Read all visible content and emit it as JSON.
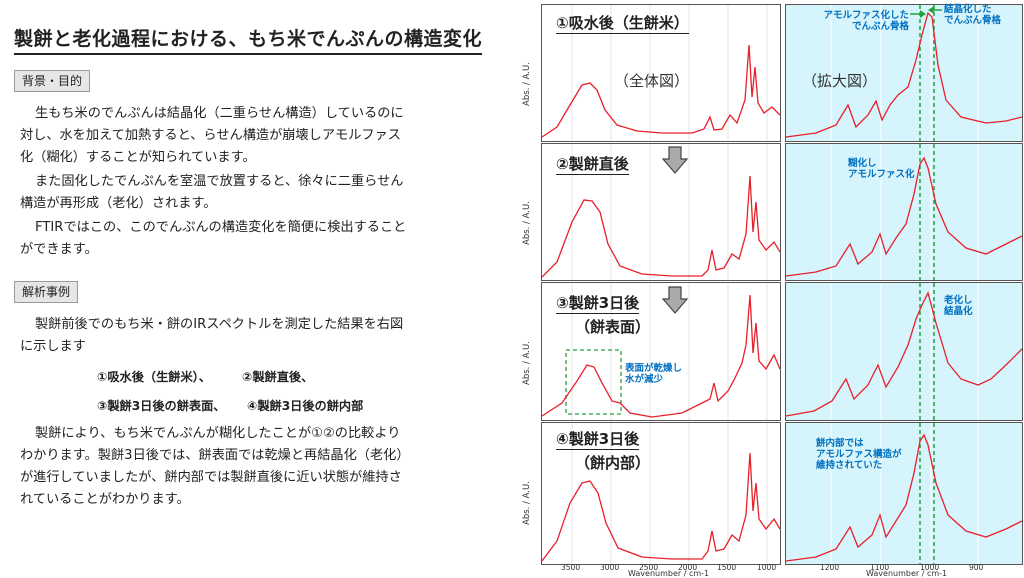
{
  "title": "製餅と老化過程における、もち米でんぷんの構造変化",
  "section1": {
    "tag": "背景・目的",
    "p1": "生もち米のでんぷんは結晶化（二重らせん構造）しているのに対し、水を加えて加熱すると、らせん構造が崩壊しアモルファス化（糊化）することが知られています。",
    "p2": "また固化したでんぷんを室温で放置すると、徐々に二重らせん構造が再形成（老化）されます。",
    "p3": "FTIRではこの、このでんぷんの構造変化を簡便に検出することができます。"
  },
  "section2": {
    "tag": "解析事例",
    "p1": "製餅前後でのもち米・餅のIRスペクトルを測定した結果を右図に示します",
    "samples": [
      "①吸水後（生餅米）、",
      "②製餅直後、",
      "③製餅3日後の餅表面、",
      "④製餅3日後の餅内部"
    ],
    "p2": "製餅により、もち米でんぷんが糊化したことが①②の比較よりわかります。製餅3日後では、餅表面では乾燥と再結晶化（老化）が進行していましたが、餅内部では製餅直後に近い状態が維持されていることがわかります。"
  },
  "figure": {
    "overview_label": "（全体図）",
    "zoom_label": "（拡大図）",
    "ylabel": "Abs. / A.U.",
    "xlabel": "Wavenumber / cm-1",
    "panels": [
      {
        "line1": "①吸水後（生餅米）",
        "line2": ""
      },
      {
        "line1": "②製餅直後",
        "line2": ""
      },
      {
        "line1": "③製餅3日後",
        "line2": "（餅表面）"
      },
      {
        "line1": "④製餅3日後",
        "line2": "（餅内部）"
      }
    ],
    "left_ticks": [
      "3500",
      "3000",
      "2500",
      "2000",
      "1500",
      "1000"
    ],
    "right_ticks": [
      "1200",
      "1100",
      "1000",
      "900"
    ],
    "annotations": {
      "amorphous_skeleton": "アモルファス化した\nでんぷん骨格",
      "crystal_skeleton": "結晶化した\nでんぷん骨格",
      "gelatinized": "糊化し\nアモルファス化",
      "retro": "老化し\n結晶化",
      "dry": "表面が乾燥し\n水が減少",
      "inner": "餅内部では\nアモルファス構造が\n維持されていた"
    },
    "colors": {
      "spectrum": "#e8202a",
      "zoom_bg": "#d5f4fb",
      "guide": "#22a33a",
      "annotation": "#0070c0"
    }
  }
}
